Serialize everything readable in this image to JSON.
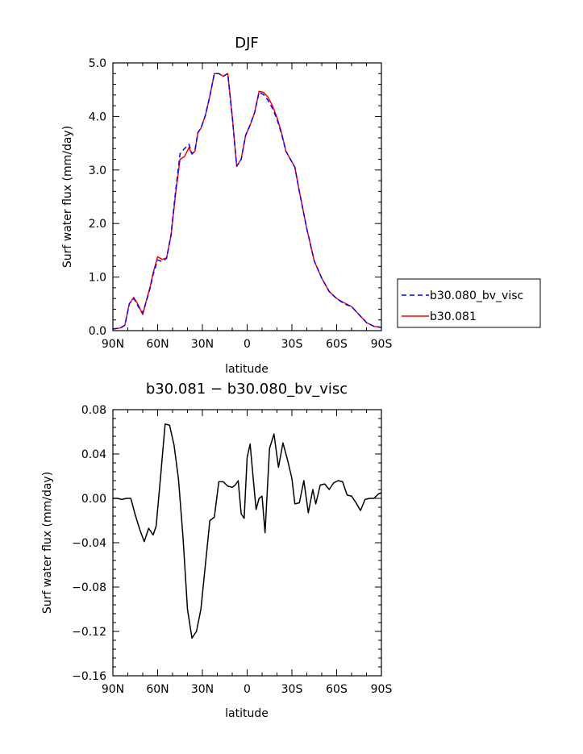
{
  "chart_data": [
    {
      "type": "line",
      "title": "DJF",
      "xlabel": "latitude",
      "ylabel": "Surf water flux (mm/day)",
      "xlim": [
        -90,
        90
      ],
      "ylim": [
        0,
        5
      ],
      "x_ticks": [
        -90,
        -60,
        -30,
        0,
        30,
        60,
        90
      ],
      "x_tick_labels": [
        "90N",
        "60N",
        "30N",
        "0",
        "30S",
        "60S",
        "90S"
      ],
      "y_ticks": [
        0,
        1,
        2,
        3,
        4,
        5
      ],
      "y_tick_labels": [
        "0.0",
        "1.0",
        "2.0",
        "3.0",
        "4.0",
        "5.0"
      ],
      "legend_position": "right",
      "series": [
        {
          "name": "b30.080_bv_visc",
          "color": "#0000ff",
          "dash": "dashed",
          "x": [
            -90,
            -85,
            -82,
            -79,
            -76,
            -73,
            -70,
            -67,
            -65,
            -63,
            -60,
            -57,
            -54,
            -51,
            -48,
            -45,
            -42,
            -39,
            -37,
            -35,
            -33,
            -31,
            -28,
            -25,
            -22,
            -19,
            -16,
            -13,
            -10,
            -7,
            -4,
            -1,
            2,
            5,
            8,
            11,
            14,
            17,
            20,
            23,
            26,
            29,
            32,
            35,
            40,
            45,
            50,
            55,
            60,
            65,
            70,
            75,
            80,
            85,
            90
          ],
          "y": [
            0.03,
            0.05,
            0.1,
            0.5,
            0.6,
            0.45,
            0.33,
            0.6,
            0.8,
            1.05,
            1.32,
            1.29,
            1.35,
            1.8,
            2.6,
            3.3,
            3.4,
            3.48,
            3.3,
            3.37,
            3.7,
            3.78,
            4.02,
            4.38,
            4.8,
            4.8,
            4.75,
            4.8,
            4.0,
            3.07,
            3.2,
            3.65,
            3.84,
            4.07,
            4.45,
            4.41,
            4.3,
            4.15,
            3.95,
            3.68,
            3.35,
            3.2,
            3.05,
            2.6,
            1.9,
            1.3,
            0.98,
            0.73,
            0.6,
            0.5,
            0.45,
            0.3,
            0.15,
            0.08,
            0.06
          ]
        },
        {
          "name": "b30.081",
          "color": "#ff0000",
          "dash": "solid",
          "x": [
            -90,
            -85,
            -82,
            -79,
            -76,
            -73,
            -70,
            -67,
            -65,
            -63,
            -60,
            -57,
            -54,
            -51,
            -48,
            -45,
            -42,
            -39,
            -37,
            -35,
            -33,
            -31,
            -28,
            -25,
            -22,
            -19,
            -16,
            -13,
            -10,
            -7,
            -4,
            -1,
            2,
            5,
            8,
            11,
            14,
            17,
            20,
            23,
            26,
            29,
            32,
            35,
            40,
            45,
            50,
            55,
            60,
            65,
            70,
            75,
            80,
            85,
            90
          ],
          "y": [
            0.03,
            0.05,
            0.1,
            0.5,
            0.62,
            0.48,
            0.3,
            0.62,
            0.82,
            1.08,
            1.38,
            1.33,
            1.36,
            1.78,
            2.55,
            3.2,
            3.25,
            3.42,
            3.3,
            3.35,
            3.7,
            3.78,
            4.02,
            4.38,
            4.8,
            4.8,
            4.75,
            4.8,
            4.0,
            3.07,
            3.2,
            3.65,
            3.84,
            4.07,
            4.47,
            4.45,
            4.36,
            4.2,
            3.98,
            3.7,
            3.35,
            3.2,
            3.05,
            2.6,
            1.9,
            1.3,
            0.98,
            0.73,
            0.6,
            0.52,
            0.45,
            0.3,
            0.15,
            0.08,
            0.06
          ]
        }
      ]
    },
    {
      "type": "line",
      "title": "b30.081 − b30.080_bv_visc",
      "xlabel": "latitude",
      "ylabel": "Surf water flux (mm/day)",
      "xlim": [
        -90,
        90
      ],
      "ylim": [
        -0.16,
        0.08
      ],
      "x_ticks": [
        -90,
        -60,
        -30,
        0,
        30,
        60,
        90
      ],
      "x_tick_labels": [
        "90N",
        "60N",
        "30N",
        "0",
        "30S",
        "60S",
        "90S"
      ],
      "y_ticks": [
        -0.16,
        -0.12,
        -0.08,
        -0.04,
        0,
        0.04,
        0.08
      ],
      "y_tick_labels": [
        "−0.16",
        "−0.12",
        "−0.08",
        "−0.04",
        "0.00",
        "0.04",
        "0.08"
      ],
      "series": [
        {
          "color": "#000000",
          "dash": "solid",
          "x": [
            -90,
            -87,
            -84,
            -81,
            -78,
            -75,
            -72,
            -69,
            -66,
            -63,
            -61,
            -58,
            -55,
            -52,
            -49,
            -46,
            -43,
            -40,
            -37,
            -34,
            -31,
            -28,
            -25,
            -22,
            -19,
            -16,
            -13,
            -10,
            -8,
            -6,
            -4,
            -2,
            0,
            2,
            4,
            6,
            8,
            10,
            12,
            15,
            18,
            21,
            24,
            27,
            30,
            32,
            35,
            38,
            41,
            44,
            46,
            49,
            52,
            55,
            58,
            61,
            64,
            67,
            70,
            73,
            76,
            79,
            82,
            85,
            88,
            90
          ],
          "y": [
            0.0,
            0.0,
            -0.001,
            0.0,
            0.0,
            -0.015,
            -0.028,
            -0.039,
            -0.027,
            -0.033,
            -0.025,
            0.02,
            0.067,
            0.066,
            0.048,
            0.017,
            -0.035,
            -0.1,
            -0.126,
            -0.12,
            -0.1,
            -0.06,
            -0.02,
            -0.017,
            0.015,
            0.015,
            0.011,
            0.01,
            0.012,
            0.016,
            -0.014,
            -0.018,
            0.037,
            0.049,
            0.019,
            -0.01,
            0.0,
            0.002,
            -0.031,
            0.045,
            0.058,
            0.028,
            0.05,
            0.035,
            0.018,
            -0.005,
            -0.004,
            0.016,
            -0.013,
            0.008,
            -0.005,
            0.012,
            0.013,
            0.008,
            0.014,
            0.016,
            0.015,
            0.003,
            0.002,
            -0.004,
            -0.011,
            -0.001,
            0.0,
            0.0,
            0.004,
            0.005
          ]
        }
      ]
    }
  ]
}
